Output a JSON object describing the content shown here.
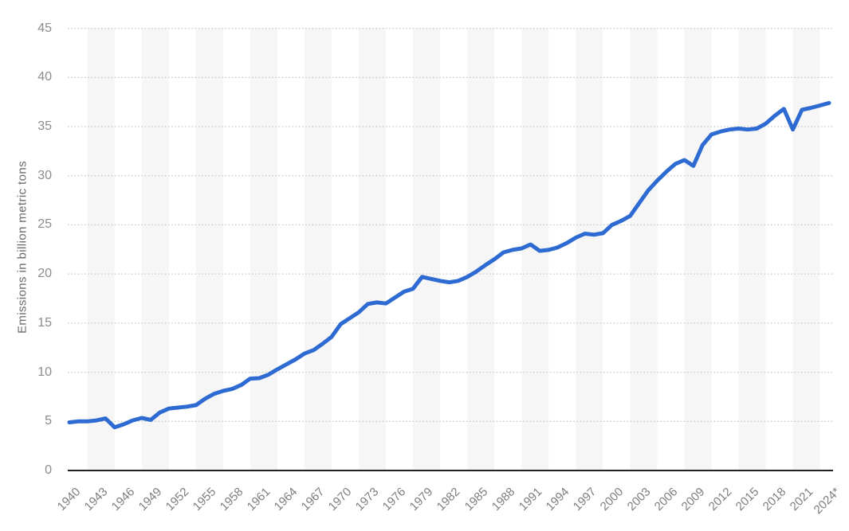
{
  "chart": {
    "y_axis_title": "Emissions in billion metric tons"
  },
  "chart_data": {
    "type": "line",
    "title": "",
    "xlabel": "",
    "ylabel": "Emissions in billion metric tons",
    "ylim": [
      0,
      45
    ],
    "y_ticks": [
      0,
      5,
      10,
      15,
      20,
      25,
      30,
      35,
      40,
      45
    ],
    "x_tick_labels": [
      "1940",
      "1943",
      "1946",
      "1949",
      "1952",
      "1955",
      "1958",
      "1961",
      "1964",
      "1967",
      "1970",
      "1973",
      "1976",
      "1979",
      "1982",
      "1985",
      "1988",
      "1991",
      "1994",
      "1997",
      "2000",
      "2003",
      "2006",
      "2009",
      "2012",
      "2015",
      "2018",
      "2021",
      "2024*"
    ],
    "grid": "horizontal-dotted",
    "legend_position": "none",
    "colors": {
      "line": "#2d6ad2",
      "gridline": "#c9c9c9",
      "plot_band": "#f6f6f6",
      "axis_line": "#222222"
    },
    "series": [
      {
        "name": "emissions",
        "color": "#2d6ad2",
        "x": [
          1940,
          1941,
          1942,
          1943,
          1944,
          1945,
          1946,
          1947,
          1948,
          1949,
          1950,
          1951,
          1952,
          1953,
          1954,
          1955,
          1956,
          1957,
          1958,
          1959,
          1960,
          1961,
          1962,
          1963,
          1964,
          1965,
          1966,
          1967,
          1968,
          1969,
          1970,
          1971,
          1972,
          1973,
          1974,
          1975,
          1976,
          1977,
          1978,
          1979,
          1980,
          1981,
          1982,
          1983,
          1984,
          1985,
          1986,
          1987,
          1988,
          1989,
          1990,
          1991,
          1992,
          1993,
          1994,
          1995,
          1996,
          1997,
          1998,
          1999,
          2000,
          2001,
          2002,
          2003,
          2004,
          2005,
          2006,
          2007,
          2008,
          2009,
          2010,
          2011,
          2012,
          2013,
          2014,
          2015,
          2016,
          2017,
          2018,
          2019,
          2020,
          2021,
          2022,
          2023,
          2024
        ],
        "values": [
          4.9,
          5.0,
          5.0,
          5.1,
          5.3,
          4.4,
          4.7,
          5.1,
          5.35,
          5.15,
          5.9,
          6.3,
          6.4,
          6.5,
          6.65,
          7.3,
          7.8,
          8.1,
          8.3,
          8.7,
          9.35,
          9.4,
          9.75,
          10.3,
          10.8,
          11.3,
          11.9,
          12.25,
          12.9,
          13.6,
          14.9,
          15.5,
          16.1,
          16.95,
          17.1,
          17.0,
          17.6,
          18.2,
          18.5,
          19.7,
          19.5,
          19.3,
          19.15,
          19.3,
          19.7,
          20.25,
          20.9,
          21.5,
          22.2,
          22.45,
          22.6,
          23.0,
          22.35,
          22.45,
          22.7,
          23.15,
          23.7,
          24.1,
          24.0,
          24.15,
          25.0,
          25.4,
          25.9,
          27.2,
          28.5,
          29.5,
          30.4,
          31.2,
          31.6,
          31.0,
          33.1,
          34.2,
          34.5,
          34.7,
          34.8,
          34.7,
          34.8,
          35.3,
          36.1,
          36.8,
          34.7,
          36.7,
          36.9,
          37.15,
          37.4
        ]
      }
    ]
  }
}
